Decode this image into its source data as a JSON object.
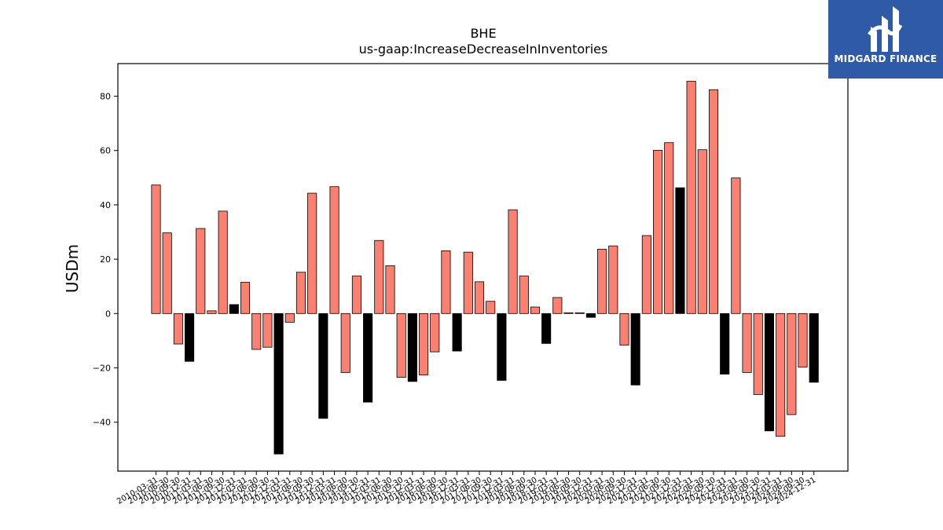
{
  "brand": {
    "name": "MIDGARD FINANCE",
    "bg_color": "#2f5aa8"
  },
  "chart_data": {
    "type": "bar",
    "title": "BHE",
    "subtitle": "us-gaap:IncreaseDecreaseInInventories",
    "ylabel": "USDm",
    "xlabel": "",
    "ylim": [
      -58,
      92
    ],
    "yticks": [
      -40,
      -20,
      0,
      20,
      40,
      60,
      80
    ],
    "grid": false,
    "colors": {
      "default": "#fa8072",
      "highlight": "#000000",
      "edge": "#000000"
    },
    "categories": [
      "2010-03-31",
      "2010-06-30",
      "2010-09-30",
      "2010-12-31",
      "2011-03-31",
      "2011-06-30",
      "2011-09-30",
      "2011-12-31",
      "2012-03-31",
      "2012-06-30",
      "2012-09-30",
      "2012-12-31",
      "2013-03-31",
      "2013-06-30",
      "2013-09-30",
      "2013-12-31",
      "2014-03-31",
      "2014-06-30",
      "2014-09-30",
      "2014-12-31",
      "2015-03-31",
      "2015-06-30",
      "2015-09-30",
      "2015-12-31",
      "2016-03-31",
      "2016-06-30",
      "2016-09-30",
      "2016-12-31",
      "2017-03-31",
      "2017-06-30",
      "2017-09-30",
      "2017-12-31",
      "2018-03-31",
      "2018-06-30",
      "2018-09-30",
      "2018-12-31",
      "2019-03-31",
      "2019-06-30",
      "2019-09-30",
      "2019-12-31",
      "2020-03-31",
      "2020-06-30",
      "2020-09-30",
      "2020-12-31",
      "2021-03-31",
      "2021-06-30",
      "2021-09-30",
      "2021-12-31",
      "2022-03-31",
      "2022-06-30",
      "2022-09-30",
      "2022-12-31",
      "2023-03-31",
      "2023-06-30",
      "2023-09-30",
      "2023-12-31",
      "2024-03-31",
      "2024-06-30",
      "2024-09-30",
      "2024-12-31"
    ],
    "values": [
      47.3,
      29.7,
      -11.2,
      -17.6,
      31.3,
      1.0,
      37.7,
      3.3,
      11.5,
      -13.2,
      -12.4,
      -51.7,
      -3.2,
      15.2,
      44.3,
      -38.6,
      46.7,
      -21.7,
      13.8,
      -32.6,
      26.9,
      17.6,
      -23.5,
      -25.0,
      -22.6,
      -14.1,
      23.1,
      -13.8,
      22.6,
      11.7,
      4.5,
      -24.6,
      38.2,
      13.8,
      2.4,
      -11.0,
      5.9,
      0.3,
      0.3,
      -1.4,
      23.7,
      24.9,
      -11.6,
      -26.3,
      28.7,
      60.1,
      62.9,
      46.3,
      85.5,
      60.3,
      82.4,
      -22.3,
      49.9,
      -21.7,
      -29.8,
      -43.2,
      -45.2,
      -37.2,
      -19.7,
      -25.3
    ],
    "highlight": [
      false,
      false,
      false,
      true,
      false,
      false,
      false,
      true,
      false,
      false,
      false,
      true,
      false,
      false,
      false,
      true,
      false,
      false,
      false,
      true,
      false,
      false,
      false,
      true,
      false,
      false,
      false,
      true,
      false,
      false,
      false,
      true,
      false,
      false,
      false,
      true,
      false,
      false,
      false,
      true,
      false,
      false,
      false,
      true,
      false,
      false,
      false,
      true,
      false,
      false,
      false,
      true,
      false,
      false,
      false,
      true,
      false,
      false,
      false,
      true
    ]
  }
}
